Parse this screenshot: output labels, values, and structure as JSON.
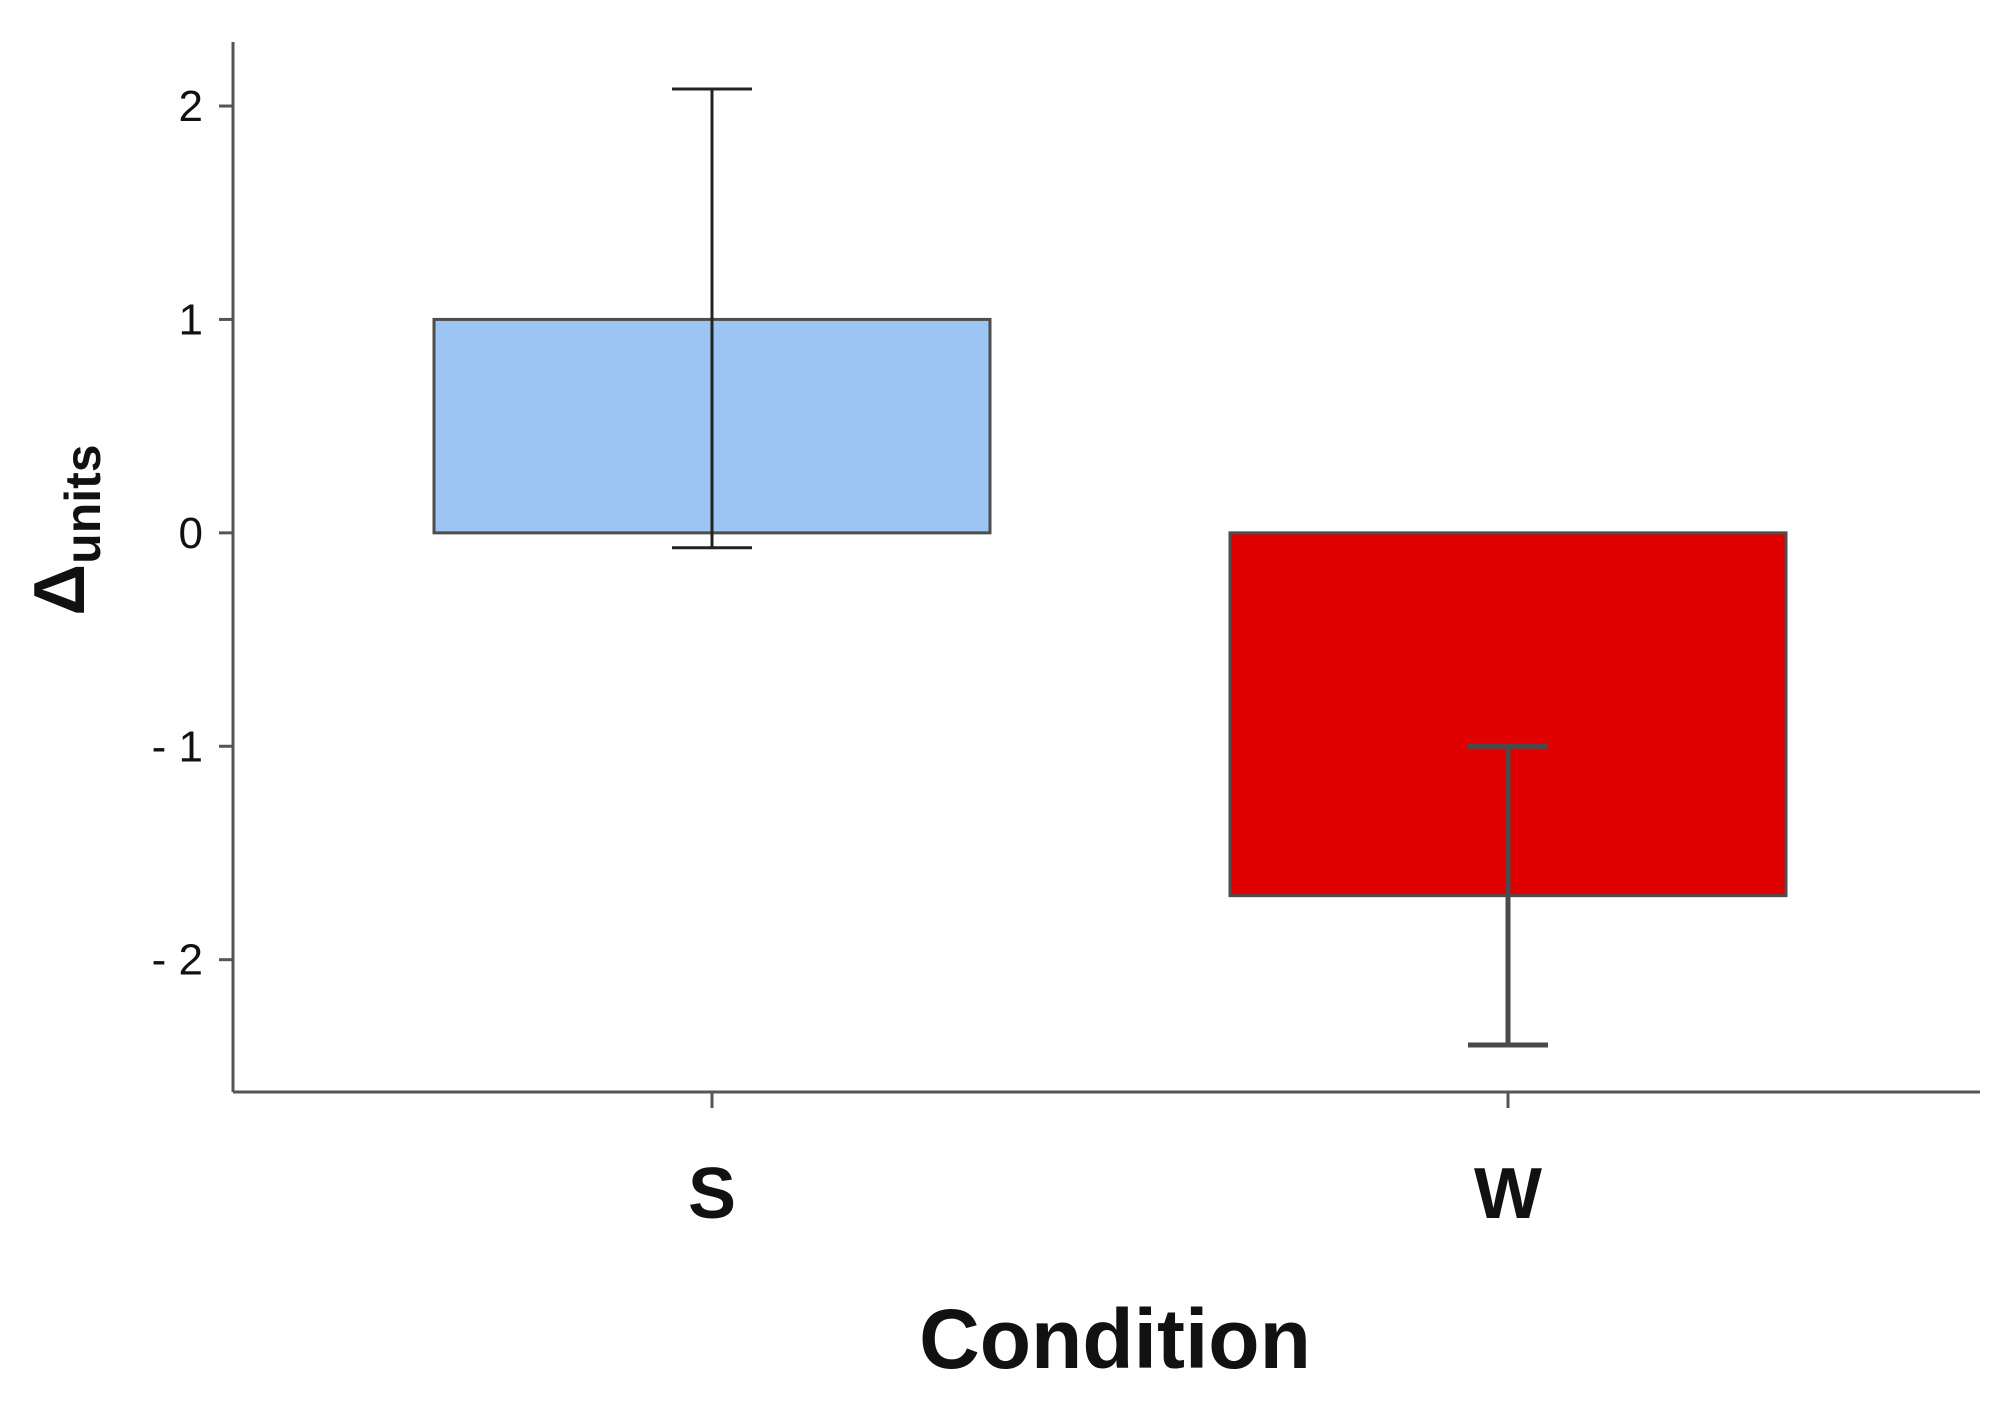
{
  "chart_data": {
    "type": "bar",
    "title": "",
    "xlabel": "Condition",
    "ylabel": {
      "main": "Δ",
      "subscript": "units"
    },
    "categories": [
      "S",
      "W"
    ],
    "values": [
      1.0,
      -1.7
    ],
    "error_bars": [
      {
        "upper": 2.08,
        "lower": -0.07
      },
      {
        "upper": -1.0,
        "lower": -2.4
      }
    ],
    "yticks": [
      2,
      1,
      0,
      -1,
      -2
    ],
    "ytick_labels": [
      "2",
      "1",
      "0",
      "- 1",
      "- 2"
    ],
    "ylim": [
      -2.62,
      2.3
    ],
    "grid": false,
    "legend": "none",
    "colors": [
      "#9cc5f3",
      "#e00000"
    ],
    "bar_stroke": "#4d4d4d",
    "axis_color": "#555555"
  }
}
